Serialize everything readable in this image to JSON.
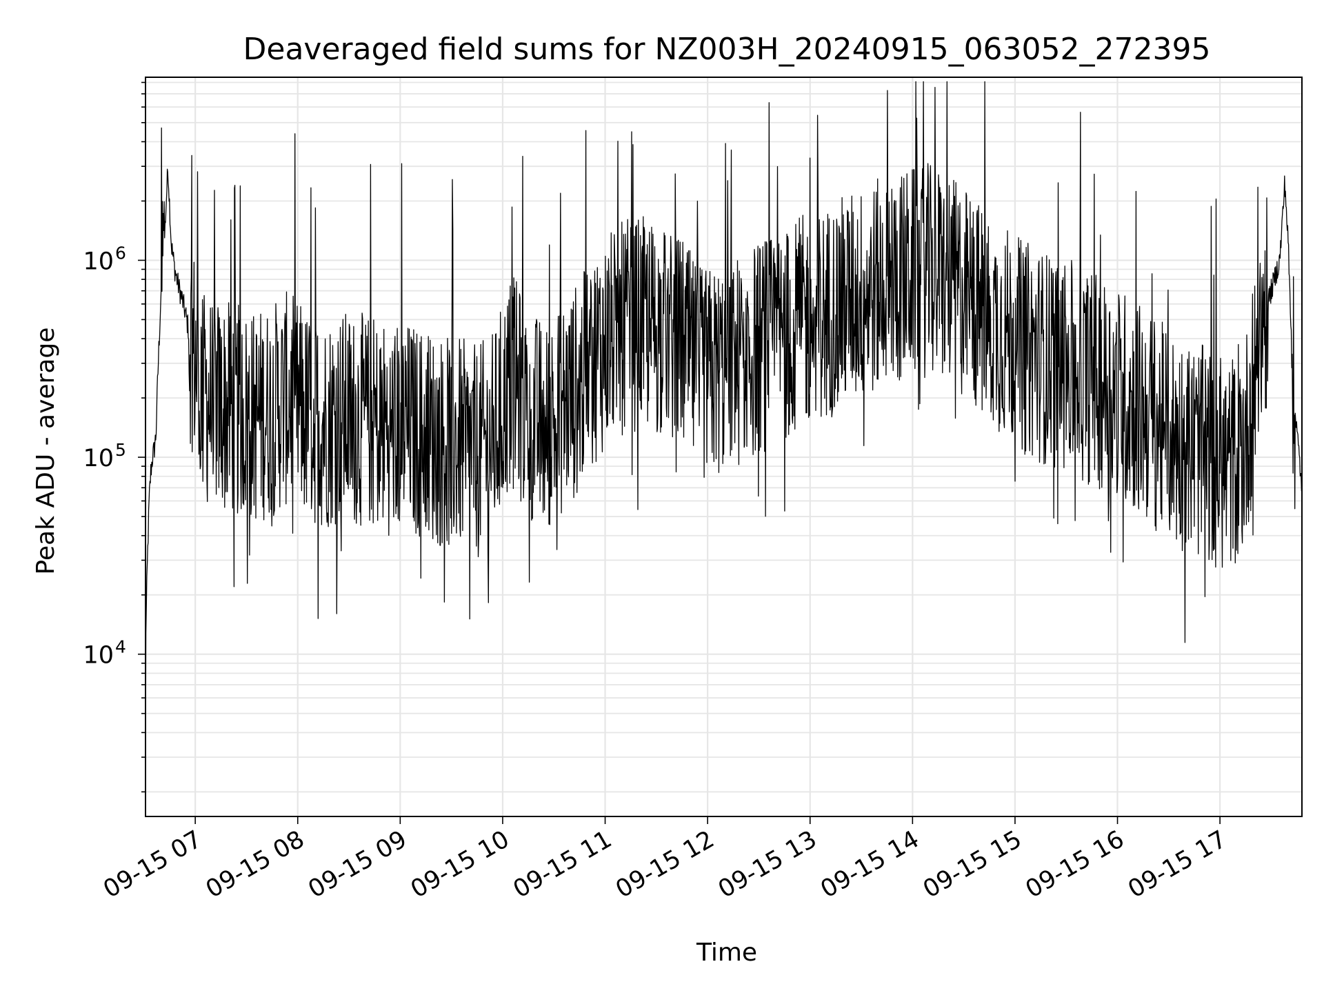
{
  "chart_data": {
    "type": "line",
    "title": "Deaveraged field sums for NZ003H_20240915_063052_272395",
    "xlabel": "Time",
    "ylabel": "Peak ADU - average",
    "yscale": "log",
    "grid": true,
    "line_color": "#000000",
    "grid_color": "#e6e6e6",
    "x_range": [
      "2024-09-15 06:30:52",
      "2024-09-15 17:48:00"
    ],
    "ylim": [
      1500,
      8500000
    ],
    "x_ticks": [
      {
        "value": "2024-09-15 07:00",
        "label": "09-15 07"
      },
      {
        "value": "2024-09-15 08:00",
        "label": "09-15 08"
      },
      {
        "value": "2024-09-15 09:00",
        "label": "09-15 09"
      },
      {
        "value": "2024-09-15 10:00",
        "label": "09-15 10"
      },
      {
        "value": "2024-09-15 11:00",
        "label": "09-15 11"
      },
      {
        "value": "2024-09-15 12:00",
        "label": "09-15 12"
      },
      {
        "value": "2024-09-15 13:00",
        "label": "09-15 13"
      },
      {
        "value": "2024-09-15 14:00",
        "label": "09-15 14"
      },
      {
        "value": "2024-09-15 15:00",
        "label": "09-15 15"
      },
      {
        "value": "2024-09-15 16:00",
        "label": "09-15 16"
      },
      {
        "value": "2024-09-15 17:00",
        "label": "09-15 17"
      }
    ],
    "y_ticks": [
      {
        "value": 10000,
        "base": "10",
        "exp": "4"
      },
      {
        "value": 100000,
        "base": "10",
        "exp": "5"
      },
      {
        "value": 1000000,
        "base": "10",
        "exp": "6"
      }
    ],
    "series": [
      {
        "x": [
          "06:30:52",
          "06:31",
          "06:32",
          "06:33",
          "06:34",
          "06:35",
          "06:36",
          "06:37",
          "06:38",
          "06:40",
          "06:42",
          "06:44",
          "06:46",
          "06:48",
          "06:50",
          "06:52",
          "06:54",
          "06:56",
          "06:58",
          "07:05",
          "07:15",
          "07:25",
          "07:35",
          "07:45",
          "07:55",
          "08:05",
          "08:15",
          "08:25",
          "08:35",
          "08:45",
          "08:55",
          "09:05",
          "09:15",
          "09:25",
          "09:35",
          "09:45",
          "09:55",
          "10:05",
          "10:15",
          "10:25",
          "10:35",
          "10:45",
          "10:55",
          "11:05",
          "11:15",
          "11:25",
          "11:35",
          "11:45",
          "11:55",
          "12:05",
          "12:15",
          "12:25",
          "12:35",
          "12:45",
          "12:55",
          "13:05",
          "13:15",
          "13:25",
          "13:35",
          "13:45",
          "13:55",
          "14:05",
          "14:15",
          "14:25",
          "14:35",
          "14:45",
          "14:55",
          "15:05",
          "15:15",
          "15:25",
          "15:35",
          "15:45",
          "15:55",
          "16:05",
          "16:15",
          "16:25",
          "16:35",
          "16:45",
          "16:55",
          "17:05",
          "17:15",
          "17:20",
          "17:25",
          "17:30",
          "17:35",
          "17:38",
          "17:40",
          "17:42",
          "17:44",
          "17:46",
          "17:48"
        ],
        "y": [
          2500,
          12000,
          30000,
          60000,
          85000,
          100000,
          110000,
          130000,
          250000,
          700000,
          1300000,
          3000000,
          1200000,
          900000,
          750000,
          650000,
          550000,
          450000,
          380000,
          200000,
          180000,
          170000,
          160000,
          175000,
          200000,
          160000,
          150000,
          160000,
          155000,
          150000,
          140000,
          140000,
          130000,
          120000,
          115000,
          105000,
          125000,
          250000,
          170000,
          135000,
          180000,
          230000,
          340000,
          420000,
          470000,
          470000,
          420000,
          380000,
          260000,
          270000,
          300000,
          340000,
          380000,
          420000,
          480000,
          520000,
          580000,
          650000,
          700000,
          780000,
          820000,
          900000,
          850000,
          750000,
          620000,
          500000,
          430000,
          360000,
          330000,
          300000,
          280000,
          250000,
          230000,
          200000,
          170000,
          140000,
          120000,
          110000,
          100000,
          90000,
          120000,
          250000,
          500000,
          700000,
          1000000,
          2500000,
          1200000,
          350000,
          170000,
          110000,
          70000
        ]
      }
    ],
    "notes_on_series": "Dense noisy time series; values sampled as approximate envelope center, with per-sample fluctuations spanning roughly 4e4 to 3e6 through the day."
  }
}
